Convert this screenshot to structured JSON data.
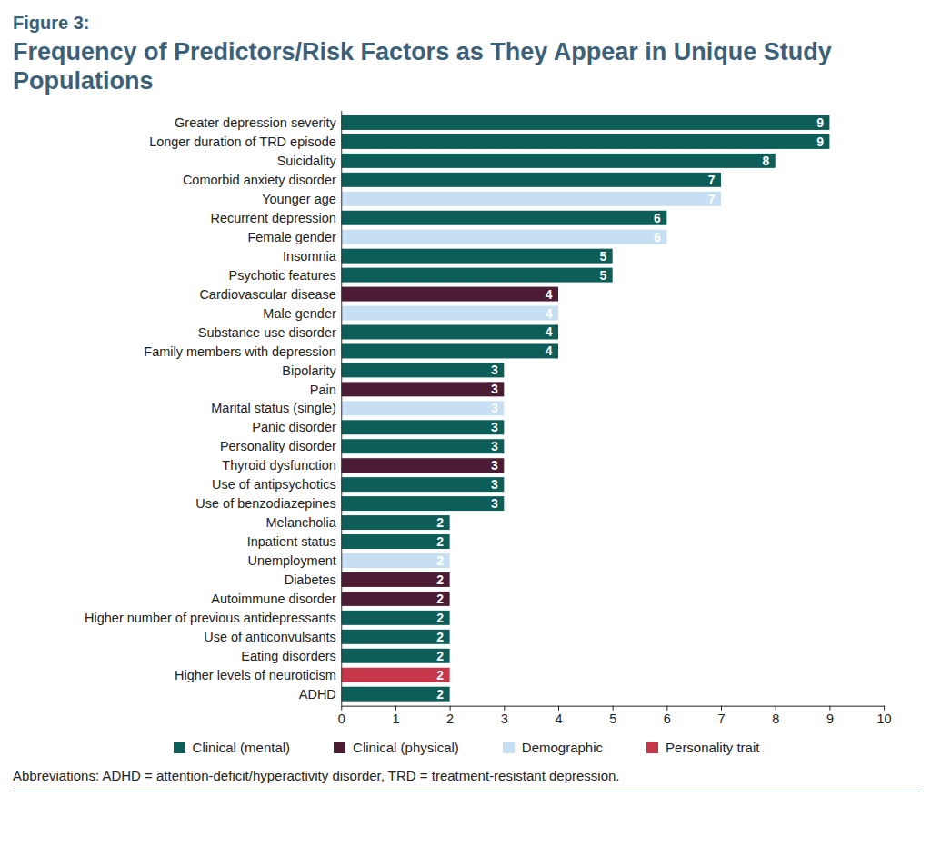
{
  "chart_data": {
    "type": "bar",
    "orientation": "horizontal",
    "title": "Frequency of Predictors/Risk Factors as They Appear in Unique Study Populations",
    "annotations": [
      "Figure 3:",
      "Abbreviations: ADHD = attention-deficit/hyperactivity disorder, TRD = treatment-resistant depression."
    ],
    "categories": [
      "Greater depression severity",
      "Longer duration of TRD episode",
      "Suicidality",
      "Comorbid anxiety disorder",
      "Younger age",
      "Recurrent depression",
      "Female gender",
      "Insomnia",
      "Psychotic features",
      "Cardiovascular disease",
      "Male gender",
      "Substance use disorder",
      "Family members with depression",
      "Bipolarity",
      "Pain",
      "Marital status (single)",
      "Panic disorder",
      "Personality disorder",
      "Thyroid dysfunction",
      "Use of antipsychotics",
      "Use of benzodiazepines",
      "Melancholia",
      "Inpatient status",
      "Unemployment",
      "Diabetes",
      "Autoimmune disorder",
      "Higher number of previous antidepressants",
      "Use of anticonvulsants",
      "Eating disorders",
      "Higher levels of neuroticism",
      "ADHD"
    ],
    "series": [
      {
        "name": "Clinical (mental)",
        "color": "#0d5d59",
        "values": [
          9,
          9,
          8,
          7,
          null,
          6,
          null,
          5,
          5,
          null,
          null,
          4,
          4,
          3,
          null,
          null,
          3,
          3,
          null,
          3,
          3,
          2,
          2,
          null,
          null,
          null,
          2,
          2,
          2,
          null,
          2
        ]
      },
      {
        "name": "Clinical (physical)",
        "color": "#4b1c33",
        "values": [
          null,
          null,
          null,
          null,
          null,
          null,
          null,
          null,
          null,
          4,
          null,
          null,
          null,
          null,
          3,
          null,
          null,
          null,
          3,
          null,
          null,
          null,
          null,
          null,
          2,
          2,
          null,
          null,
          null,
          null,
          null
        ]
      },
      {
        "name": "Demographic",
        "color": "#c6dff3",
        "values": [
          null,
          null,
          null,
          null,
          7,
          null,
          6,
          null,
          null,
          null,
          4,
          null,
          null,
          null,
          null,
          3,
          null,
          null,
          null,
          null,
          null,
          null,
          null,
          2,
          null,
          null,
          null,
          null,
          null,
          null,
          null
        ]
      },
      {
        "name": "Personality trait",
        "color": "#c8364a",
        "values": [
          null,
          null,
          null,
          null,
          null,
          null,
          null,
          null,
          null,
          null,
          null,
          null,
          null,
          null,
          null,
          null,
          null,
          null,
          null,
          null,
          null,
          null,
          null,
          null,
          null,
          null,
          null,
          null,
          null,
          2,
          null
        ]
      }
    ],
    "xlim": [
      0,
      10
    ],
    "xticks": [
      0,
      1,
      2,
      3,
      4,
      5,
      6,
      7,
      8,
      9,
      10
    ],
    "grid": false,
    "data_labels": true,
    "legend": "bottom"
  }
}
